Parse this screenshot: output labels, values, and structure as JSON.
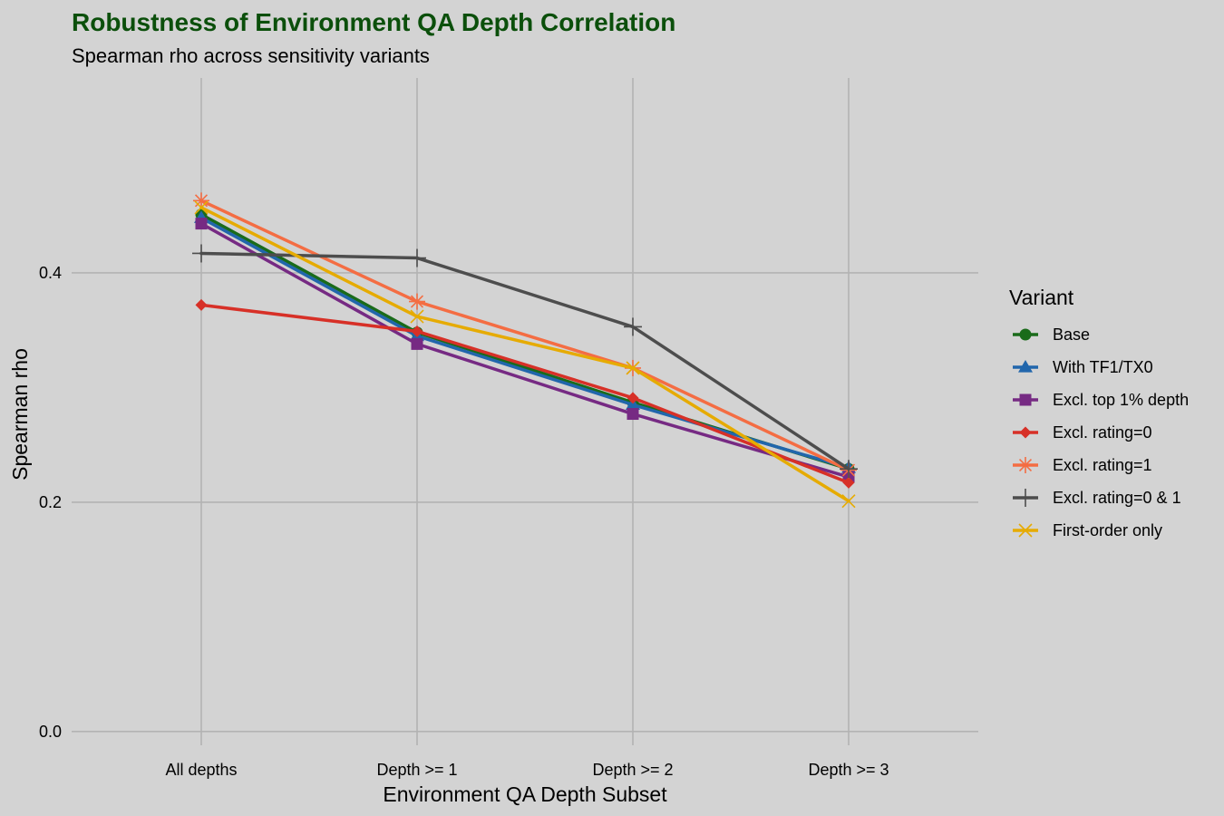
{
  "colors": {
    "background": "#d3d3d3",
    "grid": "#b3b3b3",
    "title": "#0b4f0b"
  },
  "chart_data": {
    "type": "line",
    "title": "Robustness of Environment QA Depth Correlation",
    "subtitle": "Spearman rho across sensitivity variants",
    "xlabel": "Environment QA Depth Subset",
    "ylabel": "Spearman rho",
    "categories": [
      "All depths",
      "Depth >= 1",
      "Depth >= 2",
      "Depth >= 3"
    ],
    "ylim": [
      -0.012,
      0.57
    ],
    "yticks": [
      0.0,
      0.2,
      0.4
    ],
    "ytick_labels": [
      "0.0",
      "0.2",
      "0.4"
    ],
    "grid": true,
    "legend": {
      "title": "Variant",
      "position": "right"
    },
    "series": [
      {
        "name": "Base",
        "color": "#1a6b1a",
        "marker": "circle",
        "values": [
          0.451,
          0.348,
          0.287,
          0.229
        ]
      },
      {
        "name": "With TF1/TX0",
        "color": "#2166ac",
        "marker": "triangle",
        "values": [
          0.448,
          0.345,
          0.285,
          0.23
        ]
      },
      {
        "name": "Excl. top 1% depth",
        "color": "#762a83",
        "marker": "square",
        "values": [
          0.443,
          0.338,
          0.277,
          0.222
        ]
      },
      {
        "name": "Excl. rating=0",
        "color": "#d73027",
        "marker": "diamond",
        "values": [
          0.372,
          0.349,
          0.291,
          0.217
        ]
      },
      {
        "name": "Excl. rating=1",
        "color": "#f46d43",
        "marker": "asterisk",
        "values": [
          0.463,
          0.375,
          0.317,
          0.228
        ]
      },
      {
        "name": "Excl. rating=0 & 1",
        "color": "#4d4d4d",
        "marker": "plus",
        "values": [
          0.417,
          0.413,
          0.353,
          0.229
        ]
      },
      {
        "name": "First-order only",
        "color": "#e6ab02",
        "marker": "cross",
        "values": [
          0.457,
          0.362,
          0.317,
          0.201
        ]
      }
    ]
  }
}
